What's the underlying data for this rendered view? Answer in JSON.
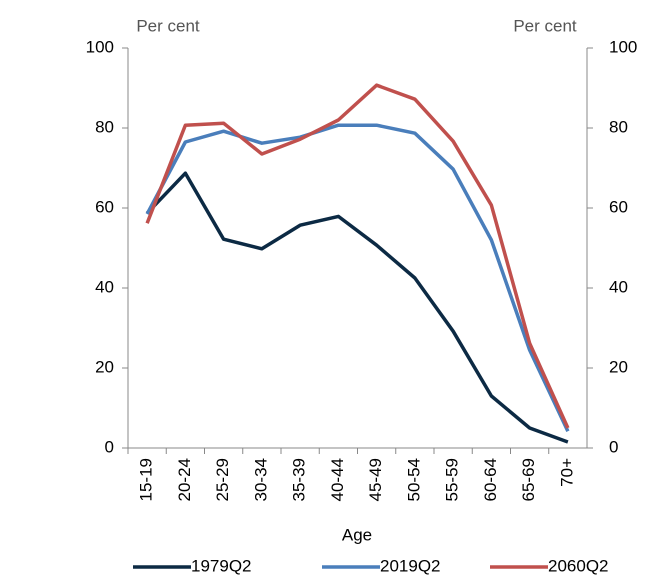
{
  "chart_data": {
    "type": "line",
    "y_label": "Per cent",
    "y2_label": "Per cent",
    "x_label": "Age",
    "categories": [
      "15-19",
      "20-24",
      "25-29",
      "30-34",
      "35-39",
      "40-44",
      "45-49",
      "50-54",
      "55-59",
      "60-64",
      "65-69",
      "70+"
    ],
    "series": [
      {
        "name": "1979Q2",
        "color": "#0c2a44",
        "values": [
          58.7,
          68.7,
          52.2,
          49.8,
          55.7,
          57.9,
          50.7,
          42.5,
          29.2,
          13,
          5,
          1.5
        ]
      },
      {
        "name": "2019Q2",
        "color": "#4a7ebb",
        "values": [
          58.5,
          76.5,
          79.2,
          76.2,
          77.7,
          80.7,
          80.7,
          78.7,
          69.7,
          52,
          24.5,
          4.2
        ]
      },
      {
        "name": "2060Q2",
        "color": "#c0504d",
        "values": [
          56.2,
          80.7,
          81.2,
          73.5,
          77.2,
          82,
          90.7,
          87.2,
          76.7,
          60.7,
          26.2,
          5
        ]
      }
    ],
    "ylim": [
      0,
      100
    ],
    "yticks": [
      0,
      20,
      40,
      60,
      80,
      100
    ],
    "y2lim": [
      0,
      100
    ],
    "y2ticks": [
      0,
      20,
      40,
      60,
      80,
      100
    ],
    "legend": "bottom"
  }
}
